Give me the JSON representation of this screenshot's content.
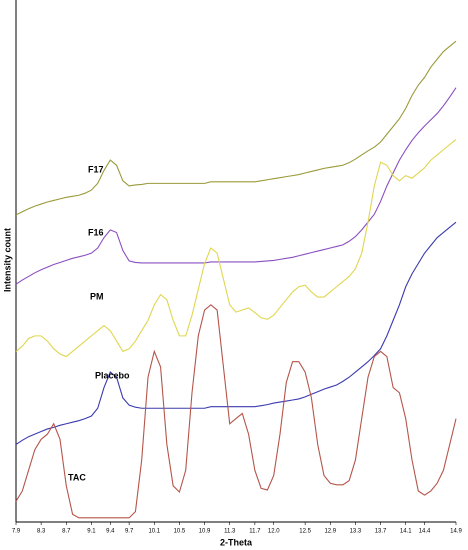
{
  "chart_data": {
    "type": "line",
    "xlabel": "2-Theta",
    "ylabel": "Intensity count",
    "x": [
      7.9,
      8,
      8.1,
      8.2,
      8.3,
      8.4,
      8.5,
      8.6,
      8.7,
      8.8,
      8.9,
      9,
      9.1,
      9.2,
      9.3,
      9.4,
      9.5,
      9.6,
      9.7,
      9.8,
      9.9,
      10,
      10.1,
      10.2,
      10.3,
      10.4,
      10.5,
      10.6,
      10.7,
      10.8,
      10.9,
      11,
      11.1,
      11.2,
      11.3,
      11.4,
      11.5,
      11.6,
      11.7,
      11.8,
      11.9,
      12,
      12.1,
      12.2,
      12.3,
      12.4,
      12.5,
      12.6,
      12.7,
      12.8,
      12.9,
      13,
      13.1,
      13.2,
      13.3,
      13.4,
      13.5,
      13.6,
      13.7,
      13.8,
      13.9,
      14,
      14.1,
      14.2,
      14.3,
      14.4,
      14.5,
      14.6,
      14.7,
      14.8,
      14.9
    ],
    "series": [
      {
        "name": "F17",
        "color": "#9a9a3a",
        "values": [
          59.4,
          60,
          60.6,
          61.1,
          61.5,
          61.9,
          62.2,
          62.5,
          62.8,
          63,
          63.2,
          63.6,
          64.2,
          65.5,
          68,
          70,
          69,
          66,
          65,
          65.2,
          65.3,
          65.5,
          65.5,
          65.5,
          65.5,
          65.5,
          65.5,
          65.5,
          65.5,
          65.5,
          65.5,
          65.8,
          65.8,
          65.8,
          65.8,
          65.8,
          65.8,
          65.8,
          65.8,
          66,
          66.2,
          66.4,
          66.6,
          66.8,
          67,
          67.2,
          67.5,
          67.8,
          68.1,
          68.4,
          68.6,
          68.8,
          69,
          69.5,
          70.2,
          71,
          71.8,
          72.5,
          73.5,
          75,
          76.5,
          78,
          80,
          82.5,
          84.5,
          86,
          88,
          89.5,
          91,
          92,
          93
        ]
      },
      {
        "name": "F16",
        "color": "#8a4fc0",
        "values": [
          46,
          46.8,
          47.5,
          48.2,
          48.8,
          49.3,
          49.8,
          50.2,
          50.6,
          51,
          51.3,
          51.6,
          52,
          53,
          55,
          56.5,
          56,
          52.5,
          50.5,
          50.2,
          50.1,
          50.1,
          50.1,
          50.1,
          50.1,
          50.1,
          50.1,
          50.1,
          50.1,
          50.1,
          50.1,
          50.3,
          50.3,
          50.3,
          50.3,
          50.3,
          50.3,
          50.3,
          50.3,
          50.4,
          50.5,
          50.6,
          50.8,
          51,
          51.2,
          51.5,
          51.8,
          52.1,
          52.4,
          52.7,
          53,
          53.3,
          53.6,
          54.3,
          55.2,
          56.5,
          58,
          59.5,
          62,
          65,
          67.5,
          70,
          72,
          73.8,
          75.3,
          76.6,
          77.8,
          79,
          80.5,
          82.2,
          84
        ]
      },
      {
        "name": "PM",
        "color": "#e0d650",
        "values": [
          33,
          34,
          35.5,
          36,
          36,
          35,
          33.5,
          32.5,
          32,
          33,
          34,
          35,
          36,
          37,
          38,
          37,
          35,
          33,
          33.5,
          35,
          37,
          39,
          42,
          44,
          43,
          39,
          36,
          36,
          40,
          45,
          50,
          53,
          52,
          47,
          42,
          40.6,
          41,
          41.4,
          40.5,
          39.5,
          39.2,
          40,
          41.5,
          43,
          44.5,
          45.5,
          45.8,
          44.5,
          43.5,
          43.5,
          44.5,
          45.5,
          46.5,
          47.5,
          49,
          52,
          58,
          65,
          69.6,
          69,
          67,
          66,
          67,
          66.5,
          67.5,
          68.5,
          70,
          71,
          72,
          73,
          74
        ]
      },
      {
        "name": "Placebo",
        "color": "#3a3ab0",
        "values": [
          15,
          15.8,
          16.5,
          17,
          17.5,
          18,
          18.3,
          18.7,
          19,
          19.3,
          19.6,
          20,
          20.5,
          22,
          26,
          29,
          28,
          24,
          22.6,
          22.2,
          22,
          22,
          22,
          22,
          22,
          22,
          22,
          22,
          22,
          22,
          22,
          22.3,
          22.3,
          22.3,
          22.3,
          22.3,
          22.3,
          22.3,
          22.3,
          22.5,
          22.7,
          23,
          23.2,
          23.4,
          23.6,
          23.8,
          24.2,
          24.7,
          25.2,
          25.7,
          26.1,
          26.5,
          27.2,
          28,
          29,
          30,
          31,
          32.2,
          33.5,
          36,
          39,
          42,
          45.5,
          48,
          50,
          52,
          53.5,
          55,
          56,
          57,
          58
        ]
      },
      {
        "name": "TAC",
        "color": "#b5554a",
        "values": [
          4,
          6,
          10,
          14,
          16,
          17,
          19,
          16,
          7,
          1.5,
          0.8,
          0.8,
          0.8,
          0.8,
          0.8,
          0.8,
          0.8,
          0.8,
          0.8,
          2,
          12,
          28,
          33,
          30,
          15,
          7,
          5.8,
          10,
          25,
          36,
          41,
          42,
          41,
          30,
          19,
          20,
          21,
          17,
          10,
          6.5,
          6.2,
          9,
          17,
          27,
          31,
          31,
          29,
          24,
          15,
          9,
          7.5,
          7.2,
          7.2,
          8,
          12,
          20,
          28,
          32,
          33,
          32,
          26,
          25,
          20,
          12,
          6,
          5.2,
          6,
          7.5,
          10,
          15,
          20
        ]
      }
    ],
    "xlim": [
      7.9,
      14.9
    ],
    "ylim": [
      0,
      100
    ],
    "xticks": [
      7.9,
      8.3,
      8.7,
      9.1,
      9.4,
      9.7,
      10.1,
      10.5,
      10.9,
      11.3,
      11.7,
      {
        "value": 12,
        "label": "12.0"
      },
      12.5,
      12.9,
      13.3,
      13.7,
      14.1,
      14.4,
      14.9
    ]
  }
}
